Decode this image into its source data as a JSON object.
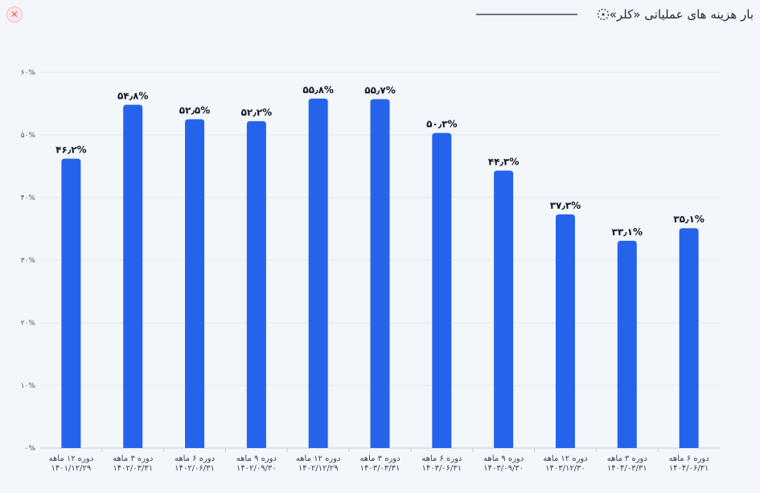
{
  "header": {
    "title": "بار هزینه های عملیاتی «کلر»",
    "close_icon": "close-icon",
    "title_icon": "dotted-circle-icon"
  },
  "colors": {
    "bar": "#2563eb",
    "grid": "#e3e7ee",
    "background": "#f3f6fb"
  },
  "chart_data": {
    "type": "bar",
    "title": "بار هزینه های عملیاتی «کلر»",
    "xlabel": "",
    "ylabel": "",
    "ylim": [
      0,
      60
    ],
    "y_ticks": [
      "۰%",
      "۱۰%",
      "۲۰%",
      "۳۰%",
      "۴۰%",
      "۵۰%",
      "۶۰%"
    ],
    "grid": true,
    "legend": "none",
    "categories": [
      [
        "دوره ۱۲ ماهه",
        "۱۴۰۱/۱۲/۲۹"
      ],
      [
        "دوره ۳ ماهه",
        "۱۴۰۲/۰۳/۳۱"
      ],
      [
        "دوره ۶ ماهه",
        "۱۴۰۲/۰۶/۳۱"
      ],
      [
        "دوره ۹ ماهه",
        "۱۴۰۲/۰۹/۳۰"
      ],
      [
        "دوره ۱۲ ماهه",
        "۱۴۰۲/۱۲/۲۹"
      ],
      [
        "دوره ۳ ماهه",
        "۱۴۰۳/۰۳/۳۱"
      ],
      [
        "دوره ۶ ماهه",
        "۱۴۰۳/۰۶/۳۱"
      ],
      [
        "دوره ۹ ماهه",
        "۱۴۰۳/۰۹/۳۰"
      ],
      [
        "دوره ۱۲ ماهه",
        "۱۴۰۳/۱۲/۳۰"
      ],
      [
        "دوره ۳ ماهه",
        "۱۴۰۴/۰۳/۳۱"
      ],
      [
        "دوره ۶ ماهه",
        "۱۴۰۴/۰۶/۳۱"
      ]
    ],
    "values": [
      46.2,
      54.8,
      52.5,
      52.2,
      55.8,
      55.7,
      50.3,
      44.3,
      37.3,
      33.1,
      35.1
    ],
    "value_labels": [
      "۴۶٫۲%",
      "۵۴٫۸%",
      "۵۲٫۵%",
      "۵۲٫۲%",
      "۵۵٫۸%",
      "۵۵٫۷%",
      "۵۰٫۳%",
      "۴۴٫۳%",
      "۳۷٫۳%",
      "۳۳٫۱%",
      "۳۵٫۱%"
    ]
  }
}
